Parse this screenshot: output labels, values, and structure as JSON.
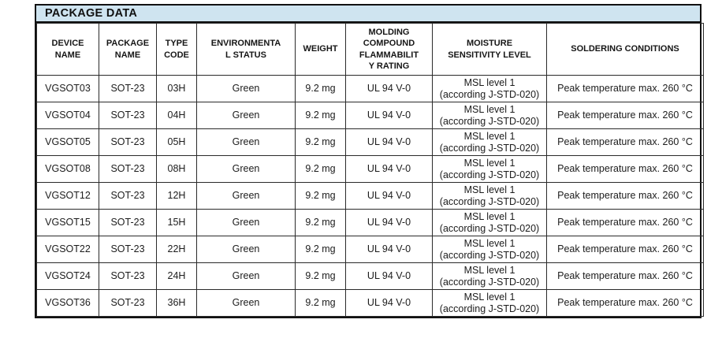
{
  "theme": {
    "title_bar_bg": "#cfe4f0",
    "outer_border_color": "#111111",
    "grid_border_color": "#2a2a2a",
    "text_color": "#1c1c1c",
    "page_bg": "#ffffff"
  },
  "title": "PACKAGE DATA",
  "table": {
    "columns": [
      {
        "key": "device_name",
        "label": "DEVICE\nNAME"
      },
      {
        "key": "package_name",
        "label": "PACKAGE\nNAME"
      },
      {
        "key": "type_code",
        "label": "TYPE\nCODE"
      },
      {
        "key": "environmental_status",
        "label": "ENVIRONMENTA\nL STATUS"
      },
      {
        "key": "weight",
        "label": "WEIGHT"
      },
      {
        "key": "molding_compound_flammability_rating",
        "label": "MOLDING\nCOMPOUND\nFLAMMABILIT\nY RATING"
      },
      {
        "key": "moisture_sensitivity_level",
        "label": "MOISTURE\nSENSITIVITY LEVEL"
      },
      {
        "key": "soldering_conditions",
        "label": "SOLDERING CONDITIONS"
      }
    ],
    "rows": [
      [
        "VGSOT03",
        "SOT-23",
        "03H",
        "Green",
        "9.2 mg",
        "UL 94 V-0",
        "MSL level 1\n(according J-STD-020)",
        "Peak temperature max. 260 °C"
      ],
      [
        "VGSOT04",
        "SOT-23",
        "04H",
        "Green",
        "9.2 mg",
        "UL 94 V-0",
        "MSL level 1\n(according J-STD-020)",
        "Peak temperature max. 260 °C"
      ],
      [
        "VGSOT05",
        "SOT-23",
        "05H",
        "Green",
        "9.2 mg",
        "UL 94 V-0",
        "MSL level 1\n(according J-STD-020)",
        "Peak temperature max. 260 °C"
      ],
      [
        "VGSOT08",
        "SOT-23",
        "08H",
        "Green",
        "9.2 mg",
        "UL 94 V-0",
        "MSL level 1\n(according J-STD-020)",
        "Peak temperature max. 260 °C"
      ],
      [
        "VGSOT12",
        "SOT-23",
        "12H",
        "Green",
        "9.2 mg",
        "UL 94 V-0",
        "MSL level 1\n(according J-STD-020)",
        "Peak temperature max. 260 °C"
      ],
      [
        "VGSOT15",
        "SOT-23",
        "15H",
        "Green",
        "9.2 mg",
        "UL 94 V-0",
        "MSL level 1\n(according J-STD-020)",
        "Peak temperature max. 260 °C"
      ],
      [
        "VGSOT22",
        "SOT-23",
        "22H",
        "Green",
        "9.2 mg",
        "UL 94 V-0",
        "MSL level 1\n(according J-STD-020)",
        "Peak temperature max. 260 °C"
      ],
      [
        "VGSOT24",
        "SOT-23",
        "24H",
        "Green",
        "9.2 mg",
        "UL 94 V-0",
        "MSL level 1\n(according J-STD-020)",
        "Peak temperature max. 260 °C"
      ],
      [
        "VGSOT36",
        "SOT-23",
        "36H",
        "Green",
        "9.2 mg",
        "UL 94 V-0",
        "MSL level 1\n(according J-STD-020)",
        "Peak temperature max. 260 °C"
      ]
    ]
  }
}
